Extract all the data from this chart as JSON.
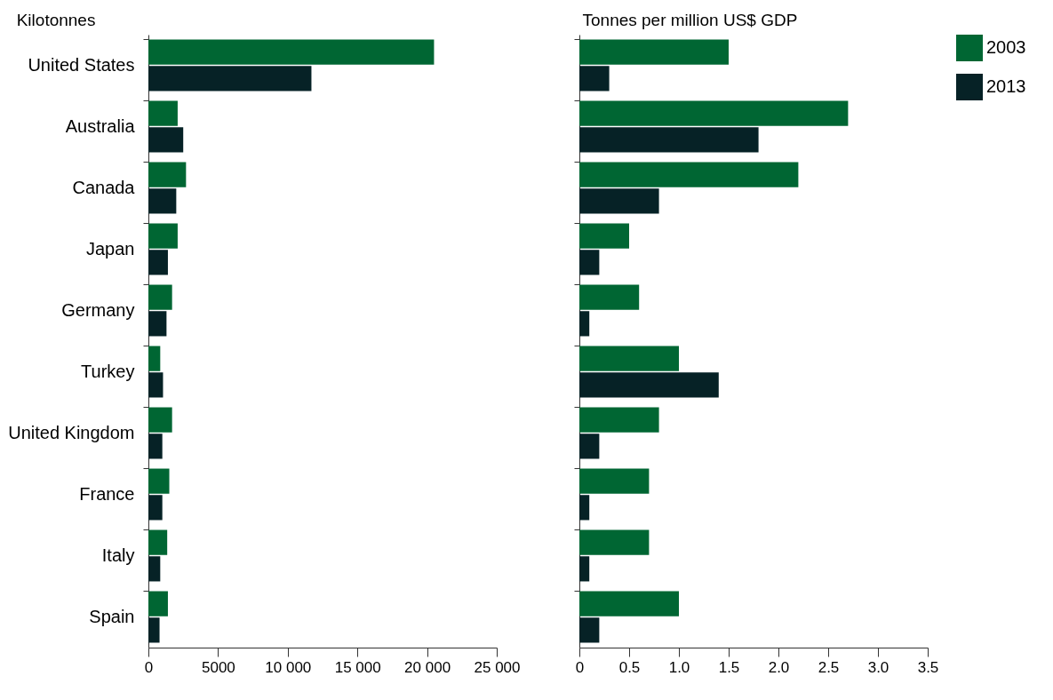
{
  "chart_data": [
    {
      "type": "bar",
      "orientation": "horizontal",
      "xlabel": "Kilotonnes",
      "categories": [
        "United States",
        "Australia",
        "Canada",
        "Japan",
        "Germany",
        "Turkey",
        "United Kingdom",
        "France",
        "Italy",
        "Spain"
      ],
      "series": [
        {
          "name": "2003",
          "color": "#006633",
          "values": [
            20500,
            2100,
            2700,
            2100,
            1700,
            850,
            1700,
            1500,
            1350,
            1400
          ]
        },
        {
          "name": "2013",
          "color": "#062226",
          "values": [
            11700,
            2500,
            2000,
            1400,
            1300,
            1050,
            1000,
            1000,
            850,
            800
          ]
        }
      ],
      "xlim": [
        0,
        25000
      ],
      "xticks": [
        0,
        5000,
        {
          "value": 10000,
          "label": "10 000"
        },
        {
          "value": 15000,
          "label": "15 000"
        },
        {
          "value": 20000,
          "label": "20 000"
        },
        {
          "value": 25000,
          "label": "25 000"
        }
      ],
      "grid": false,
      "legend": "top right"
    },
    {
      "type": "bar",
      "orientation": "horizontal",
      "xlabel": "Tonnes per million US$ GDP",
      "series": [
        {
          "name": "2003",
          "color": "#006633",
          "values": [
            1.5,
            2.7,
            2.2,
            0.5,
            0.6,
            1.0,
            0.8,
            0.7,
            0.7,
            1.0
          ]
        },
        {
          "name": "2013",
          "color": "#062226",
          "values": [
            0.3,
            1.8,
            0.8,
            0.2,
            0.1,
            1.4,
            0.2,
            0.1,
            0.1,
            0.2
          ]
        }
      ],
      "xlim": [
        0,
        3.5
      ],
      "xticks": [
        0,
        0.5,
        {
          "value": 1,
          "label": "1.0"
        },
        1.5,
        {
          "value": 2,
          "label": "2.0"
        },
        2.5,
        {
          "value": 3,
          "label": "3.0"
        },
        3.5
      ],
      "grid": false,
      "tick_labels": "x"
    }
  ]
}
